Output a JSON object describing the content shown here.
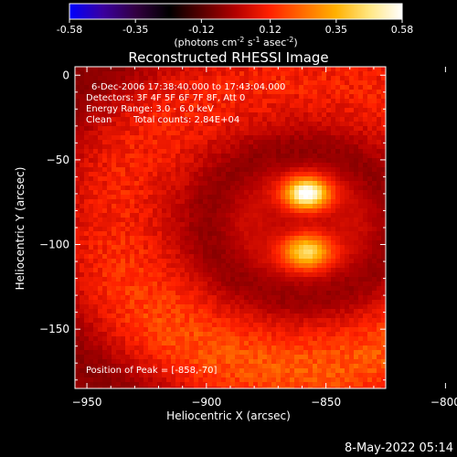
{
  "colorbar": {
    "ticks": [
      "-0.58",
      "-0.35",
      "-0.12",
      "0.12",
      "0.35",
      "0.58"
    ],
    "units_main": "(photons cm",
    "units_exp1": "-2",
    "units_mid1": " s",
    "units_exp2": "-1",
    "units_mid2": " asec",
    "units_exp3": "-2",
    "units_end": ")",
    "colors": [
      "#0000ff",
      "#3a00a0",
      "#320040",
      "#000000",
      "#5a0000",
      "#b40000",
      "#ff2000",
      "#ff6a00",
      "#ffb000",
      "#ffe680",
      "#ffffff"
    ]
  },
  "chart_data": {
    "type": "heatmap",
    "title": "Reconstructed RHESSI Image",
    "xlabel": "Heliocentric X (arcsec)",
    "ylabel": "Heliocentric Y (arcsec)",
    "xlim": [
      -955,
      -825
    ],
    "ylim": [
      -185,
      5
    ],
    "x_ticks": [
      -950,
      -900,
      -850,
      -800
    ],
    "y_ticks": [
      0,
      -50,
      -100,
      -150
    ],
    "clim": [
      -0.58,
      0.58
    ],
    "sources": [
      {
        "x": -858,
        "y": -70,
        "peak": 0.58
      },
      {
        "x": -858,
        "y": -104,
        "peak": 0.42
      }
    ],
    "annotations": {
      "time_range": "6-Dec-2006 17:38:40.000 to 17:43:04.000",
      "detectors": "Detectors: 3F 4F 5F 6F 7F 8F, Att 0",
      "energy": "Energy Range: 3.0 - 6.0 keV",
      "method": "Clean",
      "counts": "Total counts: 2.84E+04",
      "peak": "Position of Peak = [-858,-70]"
    }
  },
  "footer": {
    "date": "8-May-2022 05:14"
  }
}
